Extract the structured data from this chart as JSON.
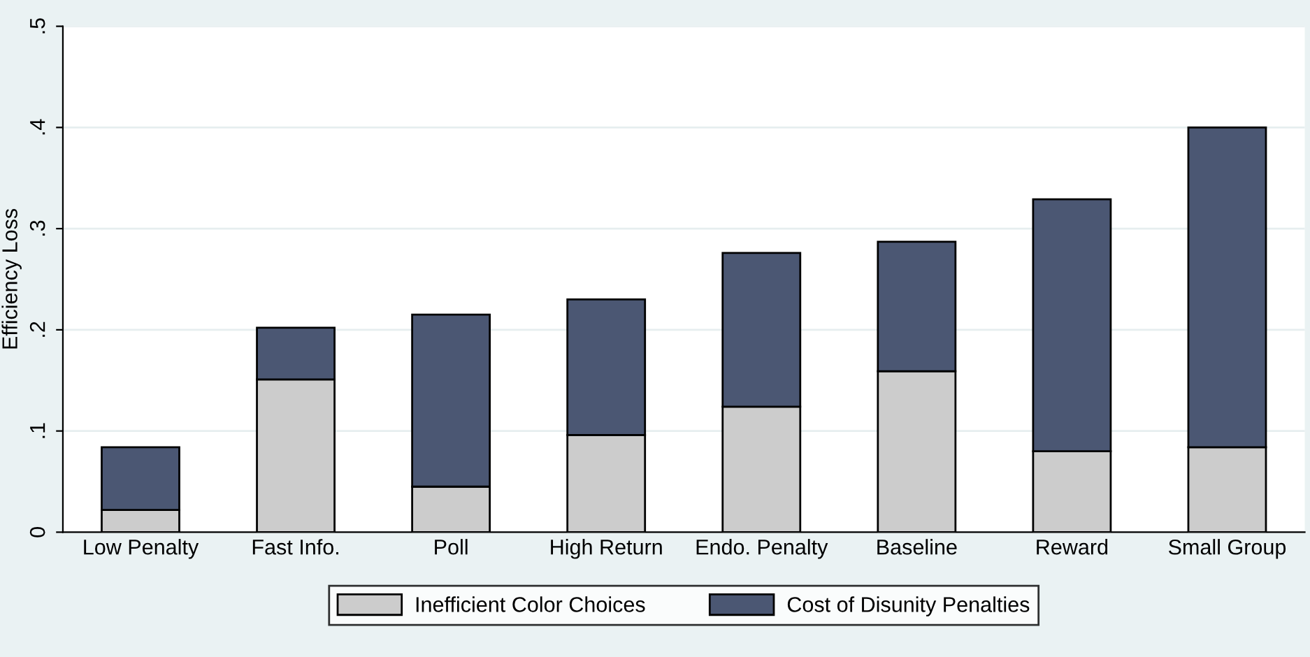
{
  "chart_data": {
    "type": "bar",
    "stacked": true,
    "ylabel": "Efficiency Loss",
    "categories": [
      "Low Penalty",
      "Fast Info.",
      "Poll",
      "High Return",
      "Endo. Penalty",
      "Baseline",
      "Reward",
      "Small Group"
    ],
    "series": [
      {
        "name": "Inefficient Color Choices",
        "color": "#cccccc",
        "values": [
          0.022,
          0.151,
          0.045,
          0.096,
          0.124,
          0.159,
          0.08,
          0.084
        ]
      },
      {
        "name": "Cost of Disunity Penalties",
        "color": "#4b5773",
        "values": [
          0.062,
          0.051,
          0.17,
          0.134,
          0.152,
          0.128,
          0.249,
          0.316
        ]
      }
    ],
    "ylim": [
      0,
      0.5
    ],
    "yticks": [
      {
        "value": 0,
        "label": "0"
      },
      {
        "value": 0.1,
        "label": ".1"
      },
      {
        "value": 0.2,
        "label": ".2"
      },
      {
        "value": 0.3,
        "label": ".3"
      },
      {
        "value": 0.4,
        "label": ".4"
      },
      {
        "value": 0.5,
        "label": ".5"
      }
    ],
    "grid": "y",
    "legend": "bottom"
  }
}
